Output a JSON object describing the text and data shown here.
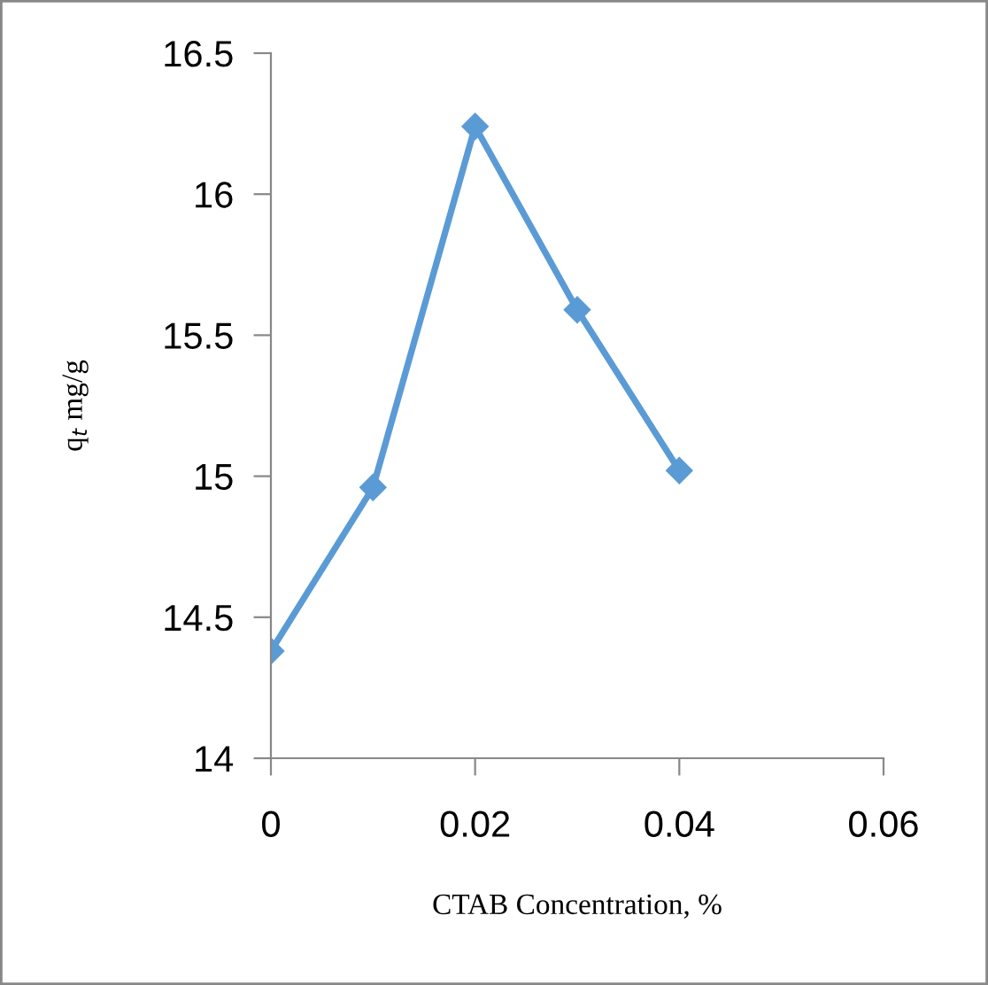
{
  "chart_data": {
    "type": "line",
    "xlabel": "CTAB Concentration, %",
    "ylabel": "q$_{t}$ mg/g",
    "x": [
      0,
      0.01,
      0.02,
      0.03,
      0.04
    ],
    "series": [
      {
        "color": "#5b9bd5",
        "values": [
          14.38,
          14.96,
          16.24,
          15.59,
          15.02
        ]
      }
    ],
    "xlim": [
      0,
      0.06
    ],
    "xticks": [
      {
        "value": 0,
        "label": "0"
      },
      {
        "value": 0.02,
        "label": "0.02"
      },
      {
        "value": 0.04,
        "label": "0.04"
      },
      {
        "value": 0.06,
        "label": "0.06"
      }
    ],
    "ylim": [
      14,
      16.5
    ],
    "yticks": [
      {
        "value": 14,
        "label": "14"
      },
      {
        "value": 14.5,
        "label": "14.5"
      },
      {
        "value": 15,
        "label": "15"
      },
      {
        "value": 15.5,
        "label": "15.5"
      },
      {
        "value": 16,
        "label": "16"
      },
      {
        "value": 16.5,
        "label": "16.5"
      }
    ],
    "marker": "diamond",
    "grid": false
  }
}
